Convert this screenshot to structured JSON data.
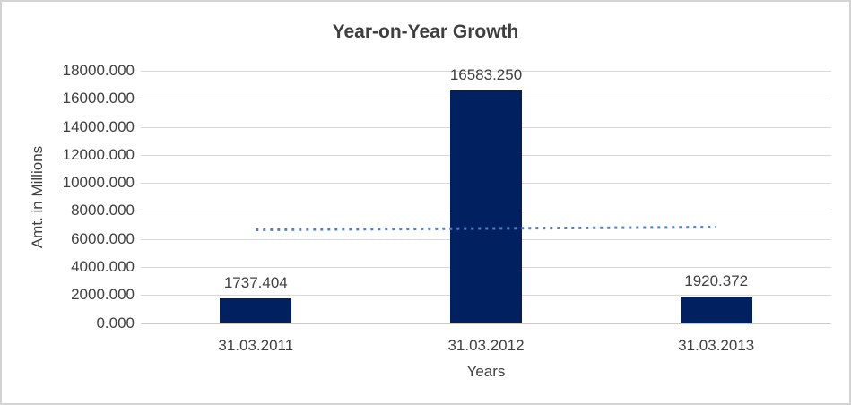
{
  "window": {
    "background": "#ffffff",
    "border_color": "#d3d3d3"
  },
  "chart_data": {
    "type": "bar",
    "title": "Year-on-Year Growth",
    "xlabel": "Years",
    "ylabel": "Amt. in Millions",
    "categories": [
      "31.03.2011",
      "31.03.2012",
      "31.03.2013"
    ],
    "values": [
      1737.404,
      16583.25,
      1920.372
    ],
    "data_labels": [
      "1737.404",
      "16583.250",
      "1920.372"
    ],
    "ylim": [
      0,
      18000
    ],
    "ytick_interval": 2000,
    "ytick_labels": [
      "18000.000",
      "16000.000",
      "14000.000",
      "12000.000",
      "10000.000",
      "8000.000",
      "6000.000",
      "4000.000",
      "2000.000",
      "0.000"
    ],
    "grid": true,
    "legend": "none",
    "bar_color": "#002060",
    "text_color": "#404040",
    "gridline_color": "#d9d9d9",
    "trendline": {
      "type": "linear",
      "style": "dotted",
      "color": "#4f81c7",
      "start_value": 6650,
      "end_value": 6840
    }
  }
}
